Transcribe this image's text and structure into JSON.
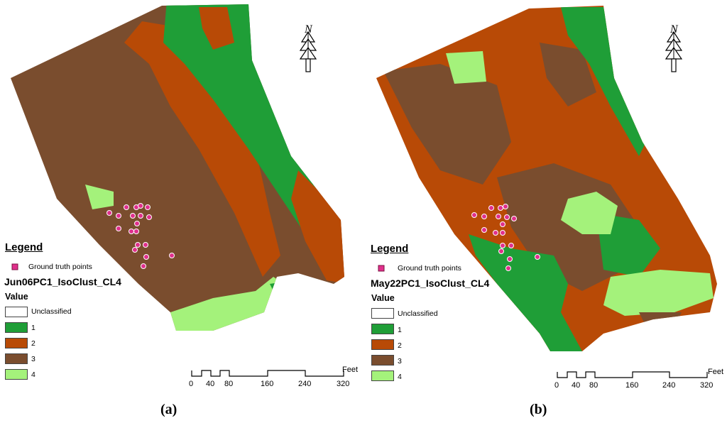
{
  "colors": {
    "class_1": "#1f9e37",
    "class_2": "#b84a06",
    "class_3": "#7a4d2e",
    "class_4": "#a4f27b",
    "unclassified": "#ffffff",
    "ground_truth": "#e0308c"
  },
  "north_label": "N",
  "scale_units": "Feet",
  "scale_ticks": [
    "0",
    "40",
    "80",
    "160",
    "240",
    "320"
  ],
  "panels": [
    {
      "caption": "(a)",
      "legend_title": "Legend",
      "ground_truth_label": "Ground truth points",
      "layer_name": "Jun06PC1_IsoClust_CL4",
      "value_label": "Value",
      "classes": [
        "Unclassified",
        "1",
        "2",
        "3",
        "4"
      ]
    },
    {
      "caption": "(b)",
      "legend_title": "Legend",
      "ground_truth_label": "Ground truth points",
      "layer_name": "May22PC1_IsoClust_CL4",
      "value_label": "Value",
      "classes": [
        "Unclassified",
        "1",
        "2",
        "3",
        "4"
      ]
    }
  ]
}
